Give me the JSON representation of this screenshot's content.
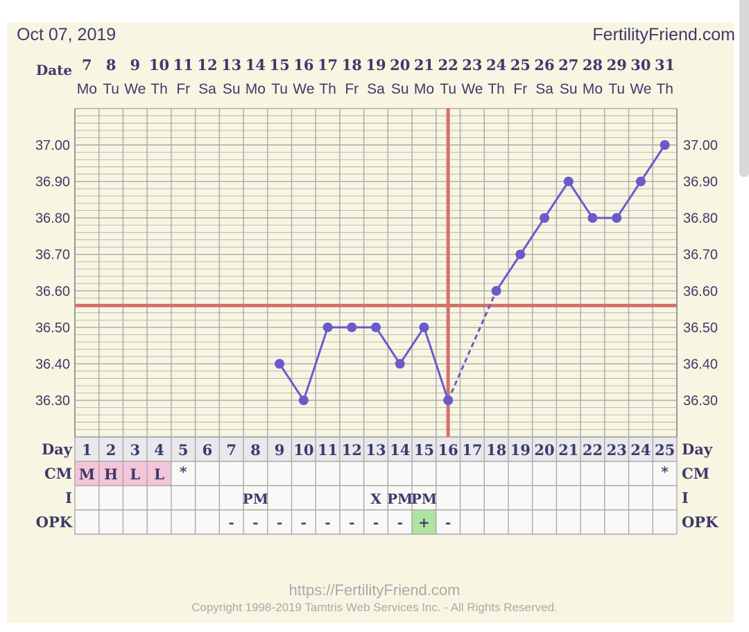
{
  "header": {
    "date": "Oct 07, 2019",
    "site": "FertilityFriend.com",
    "date_row_label": "Date",
    "day_row_label": "Day"
  },
  "footer": {
    "url": "https://FertilityFriend.com",
    "copyright": "Copyright 1998-2019 Tamtris Web Services Inc. - All Rights Reserved."
  },
  "colors": {
    "panel": "#f8f6e2",
    "grid": "#a9a9a9",
    "series": "#6a5acd",
    "coverline": "#d4706e",
    "text": "#3d3a6b",
    "cm_fill": "#f3c5d8",
    "opk_positive_fill": "#aee3a0"
  },
  "chart_data": {
    "type": "line",
    "title": "",
    "xlabel": "",
    "ylabel": "",
    "ylim": [
      36.2,
      37.1
    ],
    "y_ticks": [
      "36.30",
      "36.40",
      "36.50",
      "36.60",
      "36.70",
      "36.80",
      "36.90",
      "37.00"
    ],
    "grid": true,
    "dates": [
      "7",
      "8",
      "9",
      "10",
      "11",
      "12",
      "13",
      "14",
      "15",
      "16",
      "17",
      "18",
      "19",
      "20",
      "21",
      "22",
      "23",
      "24",
      "25",
      "26",
      "27",
      "28",
      "29",
      "30",
      "31"
    ],
    "weekdays": [
      "Mo",
      "Tu",
      "We",
      "Th",
      "Fr",
      "Sa",
      "Su",
      "Mo",
      "Tu",
      "We",
      "Th",
      "Fr",
      "Sa",
      "Su",
      "Mo",
      "Tu",
      "We",
      "Th",
      "Fr",
      "Sa",
      "Su",
      "Mo",
      "Tu",
      "We",
      "Th"
    ],
    "cycle_days": [
      "1",
      "2",
      "3",
      "4",
      "5",
      "6",
      "7",
      "8",
      "9",
      "10",
      "11",
      "12",
      "13",
      "14",
      "15",
      "16",
      "17",
      "18",
      "19",
      "20",
      "21",
      "22",
      "23",
      "24",
      "25"
    ],
    "series": [
      {
        "values": [
          null,
          null,
          null,
          null,
          null,
          null,
          null,
          null,
          36.4,
          36.3,
          36.5,
          36.5,
          36.5,
          36.4,
          36.5,
          36.3,
          null,
          36.6,
          36.7,
          36.8,
          36.9,
          36.8,
          36.8,
          36.9,
          37.0
        ]
      }
    ],
    "dashed_gap_indices": [
      15,
      17
    ],
    "coverline": 36.56,
    "ovulation_index": 15,
    "rows": {
      "cm_label": "CM",
      "cm": [
        "M",
        "H",
        "L",
        "L",
        "*",
        "",
        "",
        "",
        "",
        "",
        "",
        "",
        "",
        "",
        "",
        "",
        "",
        "",
        "",
        "",
        "",
        "",
        "",
        "",
        "*"
      ],
      "cm_highlight": [
        true,
        true,
        true,
        true,
        false,
        false,
        false,
        false,
        false,
        false,
        false,
        false,
        false,
        false,
        false,
        false,
        false,
        false,
        false,
        false,
        false,
        false,
        false,
        false,
        false
      ],
      "i_label": "I",
      "i": [
        "",
        "",
        "",
        "",
        "",
        "",
        "",
        "PM",
        "",
        "",
        "",
        "",
        "X",
        "PM",
        "PM",
        "",
        "",
        "",
        "",
        "",
        "",
        "",
        "",
        "",
        ""
      ],
      "opk_label": "OPK",
      "opk": [
        "",
        "",
        "",
        "",
        "",
        "",
        "-",
        "-",
        "-",
        "-",
        "-",
        "-",
        "-",
        "-",
        "+",
        "-",
        "",
        "",
        "",
        "",
        "",
        "",
        "",
        "",
        ""
      ],
      "opk_positive_index": 14
    }
  }
}
